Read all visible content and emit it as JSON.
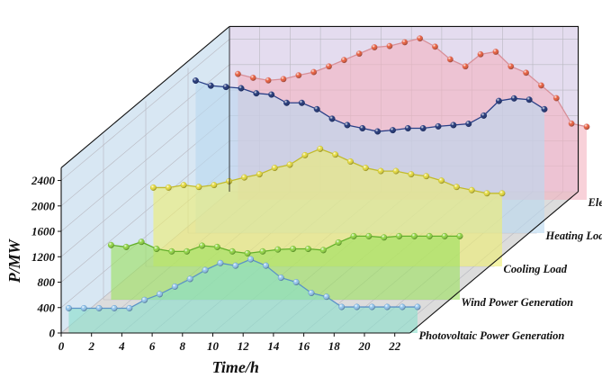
{
  "chart_data": {
    "type": "area",
    "title": "",
    "xlabel": "Time/h",
    "ylabel": "P/MW",
    "x_ticks": [
      "0",
      "2",
      "4",
      "6",
      "8",
      "10",
      "12",
      "14",
      "16",
      "18",
      "20",
      "22"
    ],
    "y_ticks": [
      "0",
      "400",
      "800",
      "1200",
      "1600",
      "2000",
      "2400"
    ],
    "xlim": [
      0,
      23
    ],
    "ylim": [
      0,
      2600
    ],
    "grid": true,
    "x": [
      1,
      2,
      3,
      4,
      5,
      6,
      7,
      8,
      9,
      10,
      11,
      12,
      13,
      14,
      15,
      16,
      17,
      18,
      19,
      20,
      21,
      22,
      23,
      24
    ],
    "series": [
      {
        "name": "Photovoltaic Power Generation",
        "fill": "#88e0cc",
        "line": "#5b93c8",
        "marker": "#8fc3ec",
        "values": [
          390,
          390,
          390,
          390,
          390,
          520,
          610,
          730,
          850,
          990,
          1100,
          1060,
          1160,
          1060,
          870,
          800,
          630,
          570,
          410,
          410,
          410,
          410,
          410,
          410
        ]
      },
      {
        "name": "Wind Power Generation",
        "fill": "#9be15c",
        "line": "#63b02a",
        "marker": "#8ed43f",
        "values": [
          860,
          830,
          910,
          800,
          760,
          760,
          850,
          830,
          760,
          730,
          760,
          790,
          800,
          800,
          780,
          900,
          1000,
          1000,
          980,
          1000,
          1000,
          1000,
          1000,
          1000
        ]
      },
      {
        "name": "Cooling Load",
        "fill": "#eeee70",
        "line": "#c2bb2a",
        "marker": "#e3d83a",
        "values": [
          1240,
          1240,
          1280,
          1250,
          1280,
          1340,
          1400,
          1450,
          1550,
          1600,
          1750,
          1850,
          1760,
          1650,
          1550,
          1500,
          1500,
          1450,
          1420,
          1350,
          1250,
          1200,
          1150,
          1150
        ]
      },
      {
        "name": "Heating Load",
        "fill": "#b9d9f0",
        "line": "#2a3f86",
        "marker": "#1d3275",
        "values": [
          2400,
          2320,
          2300,
          2280,
          2200,
          2180,
          2050,
          2050,
          1950,
          1800,
          1700,
          1650,
          1600,
          1620,
          1650,
          1650,
          1680,
          1700,
          1720,
          1850,
          2080,
          2120,
          2100,
          1950
        ]
      },
      {
        "name": "Electrical Load",
        "fill": "#f3b3bf",
        "line": "#d88f98",
        "marker": "#e55a3a",
        "values": [
          1980,
          1920,
          1880,
          1900,
          1960,
          2010,
          2100,
          2200,
          2300,
          2400,
          2420,
          2480,
          2540,
          2410,
          2210,
          2100,
          2290,
          2330,
          2100,
          2000,
          1800,
          1600,
          1200,
          1150
        ]
      }
    ]
  }
}
